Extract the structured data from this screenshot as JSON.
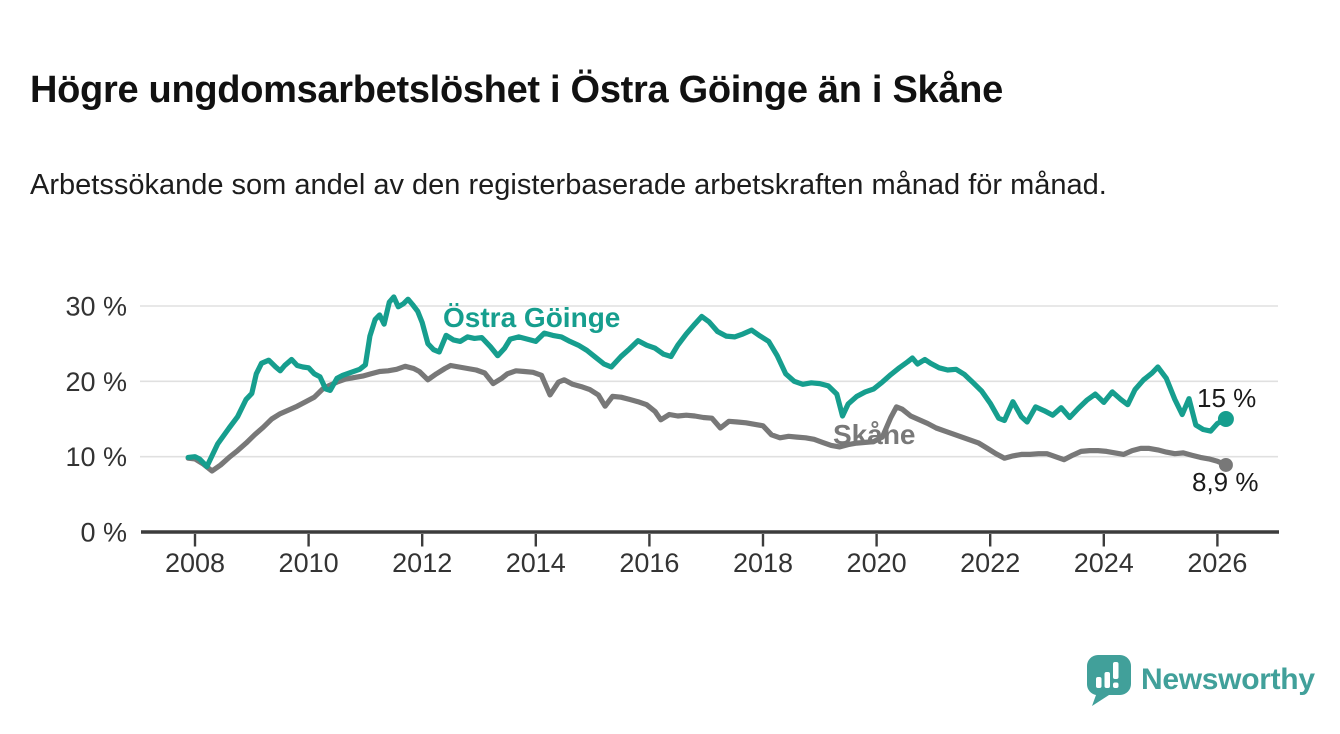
{
  "chart_data": {
    "type": "line",
    "title": "Högre ungdomsarbetslöshet i Östra Göinge än i Skåne",
    "subtitle": "Arbetssökande som andel av den registerbaserade arbetskraften månad för månad.",
    "unit": "percent",
    "legend_position": "inline-labels",
    "x_axis": {
      "tick_values": [
        2008,
        2010,
        2012,
        2014,
        2016,
        2018,
        2020,
        2022,
        2024,
        2026
      ],
      "tick_labels": [
        "2008",
        "2010",
        "2012",
        "2014",
        "2016",
        "2018",
        "2020",
        "2022",
        "2024",
        "2026"
      ],
      "range": [
        2007.8,
        2027.1
      ],
      "grid": false
    },
    "y_axis": {
      "tick_values": [
        0,
        10,
        20,
        30
      ],
      "tick_labels": [
        "0 %",
        "10 %",
        "20 %",
        "30 %"
      ],
      "range": [
        0,
        33
      ],
      "grid": true
    },
    "series": [
      {
        "name": "Östra Göinge",
        "color": "#169e8e",
        "end_label": "15 %",
        "end_value": 15.0,
        "points": [
          [
            2007.88,
            9.9
          ],
          [
            2008.0,
            10.0
          ],
          [
            2008.08,
            9.7
          ],
          [
            2008.21,
            8.7
          ],
          [
            2008.4,
            11.7
          ],
          [
            2008.6,
            13.8
          ],
          [
            2008.75,
            15.3
          ],
          [
            2008.9,
            17.6
          ],
          [
            2009.0,
            18.4
          ],
          [
            2009.08,
            21.0
          ],
          [
            2009.17,
            22.4
          ],
          [
            2009.3,
            22.8
          ],
          [
            2009.42,
            21.9
          ],
          [
            2009.5,
            21.4
          ],
          [
            2009.58,
            22.1
          ],
          [
            2009.7,
            22.9
          ],
          [
            2009.8,
            22.1
          ],
          [
            2009.9,
            21.9
          ],
          [
            2010.0,
            21.8
          ],
          [
            2010.1,
            21.0
          ],
          [
            2010.2,
            20.6
          ],
          [
            2010.3,
            19.0
          ],
          [
            2010.38,
            18.8
          ],
          [
            2010.5,
            20.4
          ],
          [
            2010.6,
            20.8
          ],
          [
            2010.75,
            21.2
          ],
          [
            2010.9,
            21.6
          ],
          [
            2011.0,
            22.2
          ],
          [
            2011.08,
            26.0
          ],
          [
            2011.17,
            28.2
          ],
          [
            2011.25,
            28.8
          ],
          [
            2011.33,
            27.6
          ],
          [
            2011.42,
            30.5
          ],
          [
            2011.5,
            31.2
          ],
          [
            2011.58,
            29.9
          ],
          [
            2011.67,
            30.3
          ],
          [
            2011.75,
            30.9
          ],
          [
            2011.83,
            30.2
          ],
          [
            2011.92,
            29.3
          ],
          [
            2012.0,
            27.8
          ],
          [
            2012.1,
            25.0
          ],
          [
            2012.2,
            24.2
          ],
          [
            2012.3,
            23.9
          ],
          [
            2012.42,
            26.1
          ],
          [
            2012.55,
            25.5
          ],
          [
            2012.67,
            25.3
          ],
          [
            2012.8,
            25.9
          ],
          [
            2012.92,
            25.7
          ],
          [
            2013.05,
            25.8
          ],
          [
            2013.2,
            24.6
          ],
          [
            2013.33,
            23.4
          ],
          [
            2013.45,
            24.4
          ],
          [
            2013.55,
            25.6
          ],
          [
            2013.7,
            25.9
          ],
          [
            2013.85,
            25.6
          ],
          [
            2014.0,
            25.3
          ],
          [
            2014.15,
            26.4
          ],
          [
            2014.3,
            26.1
          ],
          [
            2014.45,
            25.9
          ],
          [
            2014.6,
            25.3
          ],
          [
            2014.75,
            24.8
          ],
          [
            2014.9,
            24.1
          ],
          [
            2015.05,
            23.2
          ],
          [
            2015.2,
            22.3
          ],
          [
            2015.33,
            21.9
          ],
          [
            2015.5,
            23.3
          ],
          [
            2015.65,
            24.3
          ],
          [
            2015.8,
            25.4
          ],
          [
            2015.95,
            24.8
          ],
          [
            2016.1,
            24.4
          ],
          [
            2016.25,
            23.6
          ],
          [
            2016.38,
            23.3
          ],
          [
            2016.5,
            24.8
          ],
          [
            2016.65,
            26.3
          ],
          [
            2016.8,
            27.6
          ],
          [
            2016.92,
            28.6
          ],
          [
            2017.05,
            27.9
          ],
          [
            2017.2,
            26.6
          ],
          [
            2017.35,
            26.0
          ],
          [
            2017.5,
            25.9
          ],
          [
            2017.65,
            26.3
          ],
          [
            2017.8,
            26.8
          ],
          [
            2017.95,
            26.0
          ],
          [
            2018.1,
            25.3
          ],
          [
            2018.25,
            23.4
          ],
          [
            2018.4,
            21.0
          ],
          [
            2018.55,
            20.0
          ],
          [
            2018.7,
            19.6
          ],
          [
            2018.85,
            19.8
          ],
          [
            2019.0,
            19.7
          ],
          [
            2019.15,
            19.4
          ],
          [
            2019.3,
            18.3
          ],
          [
            2019.4,
            15.4
          ],
          [
            2019.5,
            17.0
          ],
          [
            2019.65,
            18.0
          ],
          [
            2019.8,
            18.6
          ],
          [
            2019.95,
            19.0
          ],
          [
            2020.1,
            19.9
          ],
          [
            2020.25,
            20.9
          ],
          [
            2020.4,
            21.8
          ],
          [
            2020.55,
            22.6
          ],
          [
            2020.63,
            23.1
          ],
          [
            2020.72,
            22.3
          ],
          [
            2020.85,
            22.9
          ],
          [
            2020.95,
            22.4
          ],
          [
            2021.1,
            21.8
          ],
          [
            2021.25,
            21.5
          ],
          [
            2021.4,
            21.6
          ],
          [
            2021.55,
            20.9
          ],
          [
            2021.7,
            19.8
          ],
          [
            2021.85,
            18.7
          ],
          [
            2022.0,
            17.1
          ],
          [
            2022.15,
            15.1
          ],
          [
            2022.25,
            14.8
          ],
          [
            2022.4,
            17.3
          ],
          [
            2022.55,
            15.3
          ],
          [
            2022.65,
            14.6
          ],
          [
            2022.8,
            16.6
          ],
          [
            2022.95,
            16.1
          ],
          [
            2023.1,
            15.5
          ],
          [
            2023.25,
            16.5
          ],
          [
            2023.4,
            15.2
          ],
          [
            2023.55,
            16.4
          ],
          [
            2023.7,
            17.5
          ],
          [
            2023.85,
            18.3
          ],
          [
            2024.0,
            17.2
          ],
          [
            2024.15,
            18.6
          ],
          [
            2024.3,
            17.6
          ],
          [
            2024.42,
            16.9
          ],
          [
            2024.55,
            18.9
          ],
          [
            2024.7,
            20.2
          ],
          [
            2024.85,
            21.1
          ],
          [
            2024.95,
            21.9
          ],
          [
            2025.1,
            20.4
          ],
          [
            2025.25,
            17.6
          ],
          [
            2025.38,
            15.6
          ],
          [
            2025.5,
            17.7
          ],
          [
            2025.62,
            14.2
          ],
          [
            2025.75,
            13.6
          ],
          [
            2025.88,
            13.4
          ],
          [
            2026.0,
            14.4
          ],
          [
            2026.15,
            15.0
          ]
        ]
      },
      {
        "name": "Skåne",
        "color": "#787878",
        "end_label": "8,9 %",
        "end_value": 8.9,
        "points": [
          [
            2007.88,
            9.8
          ],
          [
            2008.0,
            9.7
          ],
          [
            2008.15,
            9.0
          ],
          [
            2008.3,
            8.1
          ],
          [
            2008.45,
            8.9
          ],
          [
            2008.6,
            9.9
          ],
          [
            2008.75,
            10.8
          ],
          [
            2008.9,
            11.8
          ],
          [
            2009.05,
            12.9
          ],
          [
            2009.2,
            13.9
          ],
          [
            2009.35,
            15.0
          ],
          [
            2009.5,
            15.7
          ],
          [
            2009.65,
            16.2
          ],
          [
            2009.8,
            16.7
          ],
          [
            2009.95,
            17.3
          ],
          [
            2010.1,
            17.9
          ],
          [
            2010.25,
            19.0
          ],
          [
            2010.35,
            19.4
          ],
          [
            2010.5,
            19.9
          ],
          [
            2010.65,
            20.3
          ],
          [
            2010.8,
            20.5
          ],
          [
            2010.95,
            20.7
          ],
          [
            2011.1,
            21.0
          ],
          [
            2011.25,
            21.3
          ],
          [
            2011.4,
            21.4
          ],
          [
            2011.55,
            21.6
          ],
          [
            2011.7,
            22.0
          ],
          [
            2011.85,
            21.7
          ],
          [
            2011.95,
            21.3
          ],
          [
            2012.1,
            20.2
          ],
          [
            2012.25,
            21.0
          ],
          [
            2012.4,
            21.7
          ],
          [
            2012.5,
            22.1
          ],
          [
            2012.65,
            21.9
          ],
          [
            2012.8,
            21.7
          ],
          [
            2012.95,
            21.5
          ],
          [
            2013.1,
            21.1
          ],
          [
            2013.25,
            19.7
          ],
          [
            2013.4,
            20.4
          ],
          [
            2013.5,
            21.0
          ],
          [
            2013.65,
            21.4
          ],
          [
            2013.8,
            21.3
          ],
          [
            2013.95,
            21.2
          ],
          [
            2014.1,
            20.8
          ],
          [
            2014.25,
            18.2
          ],
          [
            2014.4,
            19.9
          ],
          [
            2014.5,
            20.2
          ],
          [
            2014.65,
            19.6
          ],
          [
            2014.8,
            19.3
          ],
          [
            2014.95,
            18.9
          ],
          [
            2015.1,
            18.2
          ],
          [
            2015.22,
            16.7
          ],
          [
            2015.35,
            18.0
          ],
          [
            2015.5,
            17.9
          ],
          [
            2015.65,
            17.6
          ],
          [
            2015.8,
            17.3
          ],
          [
            2015.95,
            16.9
          ],
          [
            2016.1,
            16.0
          ],
          [
            2016.2,
            14.9
          ],
          [
            2016.35,
            15.6
          ],
          [
            2016.5,
            15.4
          ],
          [
            2016.65,
            15.5
          ],
          [
            2016.8,
            15.4
          ],
          [
            2016.95,
            15.2
          ],
          [
            2017.1,
            15.1
          ],
          [
            2017.25,
            13.8
          ],
          [
            2017.4,
            14.7
          ],
          [
            2017.55,
            14.6
          ],
          [
            2017.7,
            14.5
          ],
          [
            2017.85,
            14.3
          ],
          [
            2018.0,
            14.1
          ],
          [
            2018.15,
            12.9
          ],
          [
            2018.3,
            12.5
          ],
          [
            2018.45,
            12.7
          ],
          [
            2018.6,
            12.6
          ],
          [
            2018.75,
            12.5
          ],
          [
            2018.9,
            12.3
          ],
          [
            2019.05,
            11.9
          ],
          [
            2019.2,
            11.5
          ],
          [
            2019.35,
            11.3
          ],
          [
            2019.5,
            11.6
          ],
          [
            2019.65,
            11.8
          ],
          [
            2019.8,
            11.9
          ],
          [
            2019.95,
            12.0
          ],
          [
            2020.1,
            12.6
          ],
          [
            2020.25,
            15.2
          ],
          [
            2020.35,
            16.6
          ],
          [
            2020.45,
            16.3
          ],
          [
            2020.6,
            15.4
          ],
          [
            2020.75,
            14.9
          ],
          [
            2020.9,
            14.4
          ],
          [
            2021.05,
            13.8
          ],
          [
            2021.2,
            13.4
          ],
          [
            2021.35,
            13.0
          ],
          [
            2021.5,
            12.6
          ],
          [
            2021.65,
            12.2
          ],
          [
            2021.8,
            11.8
          ],
          [
            2021.95,
            11.1
          ],
          [
            2022.1,
            10.4
          ],
          [
            2022.25,
            9.8
          ],
          [
            2022.4,
            10.1
          ],
          [
            2022.55,
            10.3
          ],
          [
            2022.7,
            10.3
          ],
          [
            2022.85,
            10.4
          ],
          [
            2023.0,
            10.4
          ],
          [
            2023.15,
            10.0
          ],
          [
            2023.3,
            9.6
          ],
          [
            2023.45,
            10.2
          ],
          [
            2023.6,
            10.7
          ],
          [
            2023.75,
            10.8
          ],
          [
            2023.9,
            10.8
          ],
          [
            2024.05,
            10.7
          ],
          [
            2024.2,
            10.5
          ],
          [
            2024.35,
            10.3
          ],
          [
            2024.5,
            10.8
          ],
          [
            2024.65,
            11.1
          ],
          [
            2024.8,
            11.1
          ],
          [
            2024.95,
            10.9
          ],
          [
            2025.1,
            10.6
          ],
          [
            2025.25,
            10.4
          ],
          [
            2025.4,
            10.5
          ],
          [
            2025.55,
            10.2
          ],
          [
            2025.7,
            9.9
          ],
          [
            2025.85,
            9.7
          ],
          [
            2026.0,
            9.4
          ],
          [
            2026.15,
            8.9
          ]
        ]
      }
    ]
  },
  "branding": {
    "wordmark": "Newsworthy",
    "color": "#41a09a",
    "icon": "newsworthy-speech-bubble-barchart"
  }
}
